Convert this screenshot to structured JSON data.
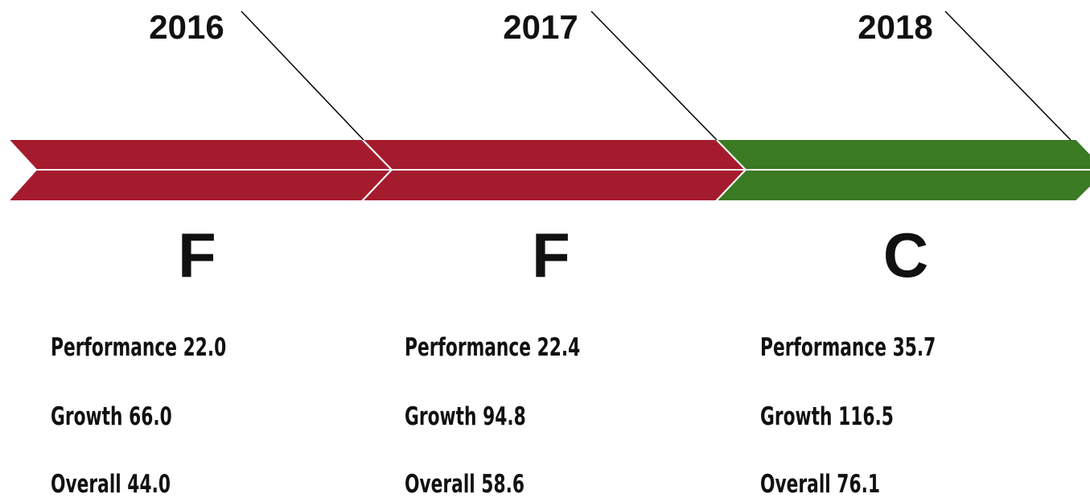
{
  "periods": [
    {
      "year": "2016",
      "grade": "F",
      "metrics": [
        "Performance 22.0",
        "Growth 66.0",
        "Overall 44.0"
      ]
    },
    {
      "year": "2017",
      "grade": "F",
      "metrics": [
        "Performance 22.4",
        "Growth 94.8",
        "Overall 58.6"
      ]
    },
    {
      "year": "2018",
      "grade": "C",
      "metrics": [
        "Performance 35.7",
        "Growth 116.5",
        "Overall 76.1"
      ]
    }
  ]
}
